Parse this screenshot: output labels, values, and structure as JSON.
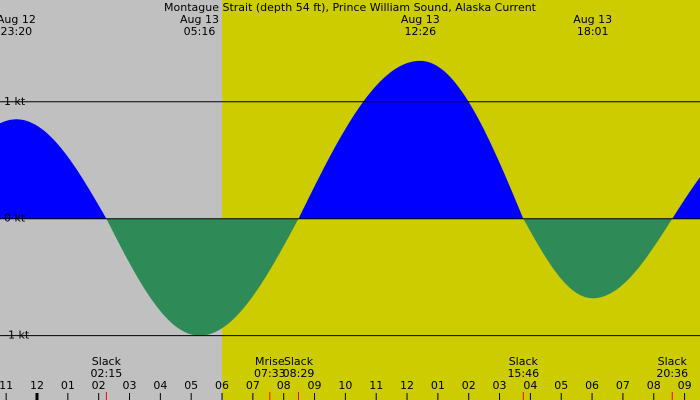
{
  "chart_data": {
    "type": "tide-current",
    "title": "Montague Strait (depth 54 ft), Prince William Sound, Alaska Current",
    "xlim": [
      -1.2,
      21.5
    ],
    "ylim": [
      -1.55,
      1.87
    ],
    "yticks": [
      {
        "value": 1,
        "label": "1 kt"
      },
      {
        "value": 0,
        "label": "0 kt"
      },
      {
        "value": -1,
        "label": "-1 kt"
      }
    ],
    "xticks": [
      {
        "value": -1,
        "label": "11"
      },
      {
        "value": 0,
        "label": "12"
      },
      {
        "value": 1,
        "label": "01"
      },
      {
        "value": 2,
        "label": "02"
      },
      {
        "value": 3,
        "label": "03"
      },
      {
        "value": 4,
        "label": "04"
      },
      {
        "value": 5,
        "label": "05"
      },
      {
        "value": 6,
        "label": "06"
      },
      {
        "value": 7,
        "label": "07"
      },
      {
        "value": 8,
        "label": "08"
      },
      {
        "value": 9,
        "label": "09"
      },
      {
        "value": 10,
        "label": "10"
      },
      {
        "value": 11,
        "label": "11"
      },
      {
        "value": 12,
        "label": "12"
      },
      {
        "value": 13,
        "label": "01"
      },
      {
        "value": 14,
        "label": "02"
      },
      {
        "value": 15,
        "label": "03"
      },
      {
        "value": 16,
        "label": "04"
      },
      {
        "value": 17,
        "label": "05"
      },
      {
        "value": 18,
        "label": "06"
      },
      {
        "value": 19,
        "label": "07"
      },
      {
        "value": 20,
        "label": "08"
      },
      {
        "value": 21,
        "label": "09"
      }
    ],
    "curve": {
      "x": [
        -0.67,
        2.25,
        5.27,
        8.48,
        12.43,
        15.77,
        18.02,
        20.6
      ],
      "values": [
        0.85,
        0,
        -1.0,
        0,
        1.35,
        0,
        -0.68,
        0
      ]
    },
    "flood_color": "#0000ff",
    "ebb_color": "#2e8b57",
    "night_color": "#c0c0c0",
    "day_color": "#cccc00",
    "sunrise": 6.0,
    "extremes": [
      {
        "date": "Aug 12",
        "time": "23:20",
        "x": -0.67
      },
      {
        "date": "Aug 13",
        "time": "05:16",
        "x": 5.27
      },
      {
        "date": "Aug 13",
        "time": "12:26",
        "x": 12.43
      },
      {
        "date": "Aug 13",
        "time": "18:01",
        "x": 18.02
      }
    ],
    "events": [
      {
        "label": "Slack",
        "time": "02:15",
        "x": 2.25
      },
      {
        "label": "Mrise",
        "time": "07:33",
        "x": 7.55
      },
      {
        "label": "Slack",
        "time": "08:29",
        "x": 8.48
      },
      {
        "label": "Slack",
        "time": "15:46",
        "x": 15.77
      },
      {
        "label": "Slack",
        "time": "20:36",
        "x": 20.6
      }
    ]
  }
}
